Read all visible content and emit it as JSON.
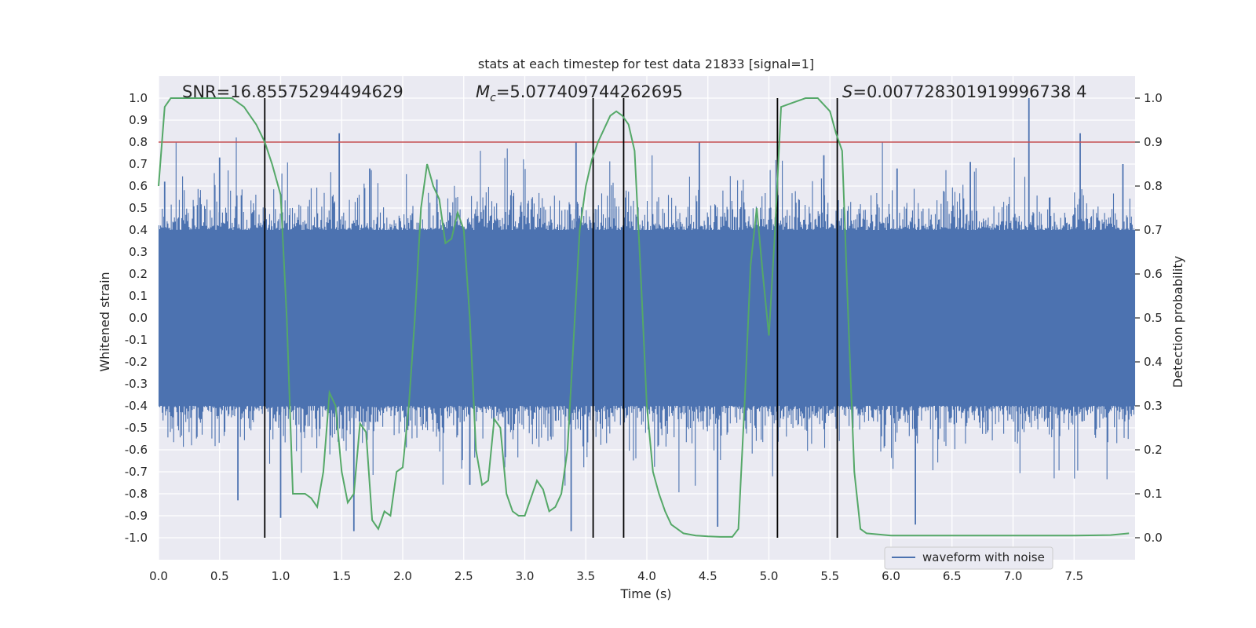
{
  "chart_data": {
    "type": "line",
    "title": "stats at each timestep for test data 21833 [signal=1]",
    "xlabel": "Time (s)",
    "ylabel": "Whitened strain",
    "ylabel_right": "Detection probability",
    "xlim": [
      0.0,
      8.0
    ],
    "ylim": [
      -1.1,
      1.1
    ],
    "ylim_right": [
      -0.05,
      1.05
    ],
    "x_ticks": [
      "0.0",
      "0.5",
      "1.0",
      "1.5",
      "2.0",
      "2.5",
      "3.0",
      "3.5",
      "4.0",
      "4.5",
      "5.0",
      "5.5",
      "6.0",
      "6.5",
      "7.0",
      "7.5"
    ],
    "y_ticks": [
      "1.0",
      "0.9",
      "0.8",
      "0.7",
      "0.6",
      "0.5",
      "0.4",
      "0.3",
      "0.2",
      "0.1",
      "0.0",
      "-0.1",
      "-0.2",
      "-0.3",
      "-0.4",
      "-0.5",
      "-0.6",
      "-0.7",
      "-0.8",
      "-0.9",
      "-1.0"
    ],
    "y_ticks_right": [
      "1.0",
      "0.9",
      "0.8",
      "0.7",
      "0.6",
      "0.5",
      "0.4",
      "0.3",
      "0.2",
      "0.1",
      "0.0"
    ],
    "annotations": {
      "snr": "SNR=16.85575294494629",
      "mc_prefix": "M",
      "mc_sub": "c",
      "mc_value": "=5.077409744262695",
      "s_prefix": "S",
      "s_value": "=0.007728301919996738 4"
    },
    "threshold": {
      "y": 0.8,
      "color": "#c44e52"
    },
    "vertical_markers_x": [
      0.87,
      3.56,
      3.81,
      5.07,
      5.56
    ],
    "series": [
      {
        "name": "waveform with noise",
        "color": "#4c72b0",
        "kind": "noise-envelope",
        "dense_band": [
          -0.4,
          0.4
        ],
        "peak_extremes_x": [
          0.05,
          0.5,
          0.65,
          1.0,
          1.48,
          1.6,
          1.73,
          2.28,
          2.55,
          3.38,
          3.42,
          4.43,
          4.58,
          5.45,
          6.05,
          6.2,
          6.65,
          7.13,
          7.55,
          7.9
        ],
        "peak_extremes_y": [
          0.62,
          0.73,
          -0.83,
          -0.91,
          0.84,
          -0.97,
          0.68,
          0.63,
          -0.76,
          -0.97,
          0.8,
          0.8,
          -0.95,
          0.74,
          0.68,
          -0.94,
          0.71,
          1.0,
          0.84,
          0.7
        ]
      },
      {
        "name": "detection probability",
        "color": "#55a868",
        "axis": "right",
        "x": [
          0.0,
          0.05,
          0.1,
          0.2,
          0.3,
          0.4,
          0.5,
          0.6,
          0.65,
          0.7,
          0.75,
          0.8,
          0.87,
          0.93,
          1.0,
          1.05,
          1.1,
          1.2,
          1.25,
          1.3,
          1.35,
          1.4,
          1.45,
          1.5,
          1.55,
          1.6,
          1.65,
          1.7,
          1.75,
          1.8,
          1.85,
          1.9,
          1.95,
          2.0,
          2.05,
          2.1,
          2.15,
          2.2,
          2.25,
          2.3,
          2.35,
          2.4,
          2.45,
          2.5,
          2.55,
          2.6,
          2.65,
          2.7,
          2.75,
          2.8,
          2.85,
          2.9,
          2.95,
          3.0,
          3.05,
          3.1,
          3.15,
          3.2,
          3.25,
          3.3,
          3.35,
          3.4,
          3.45,
          3.5,
          3.55,
          3.6,
          3.65,
          3.7,
          3.75,
          3.8,
          3.85,
          3.9,
          3.95,
          4.0,
          4.05,
          4.1,
          4.15,
          4.2,
          4.25,
          4.3,
          4.4,
          4.5,
          4.6,
          4.7,
          4.75,
          4.8,
          4.85,
          4.9,
          4.95,
          5.0,
          5.05,
          5.1,
          5.2,
          5.3,
          5.4,
          5.5,
          5.55,
          5.6,
          5.65,
          5.7,
          5.75,
          5.8,
          6.0,
          6.5,
          7.0,
          7.5,
          7.8,
          7.95
        ],
        "values": [
          0.8,
          0.98,
          1.0,
          1.0,
          1.0,
          1.0,
          1.0,
          1.0,
          0.99,
          0.98,
          0.96,
          0.94,
          0.9,
          0.85,
          0.78,
          0.5,
          0.1,
          0.1,
          0.09,
          0.07,
          0.15,
          0.33,
          0.3,
          0.15,
          0.08,
          0.1,
          0.26,
          0.24,
          0.04,
          0.02,
          0.06,
          0.05,
          0.15,
          0.16,
          0.3,
          0.5,
          0.75,
          0.85,
          0.8,
          0.77,
          0.67,
          0.68,
          0.74,
          0.7,
          0.5,
          0.2,
          0.12,
          0.13,
          0.27,
          0.25,
          0.1,
          0.06,
          0.05,
          0.05,
          0.09,
          0.13,
          0.11,
          0.06,
          0.07,
          0.1,
          0.2,
          0.45,
          0.7,
          0.8,
          0.86,
          0.9,
          0.93,
          0.96,
          0.97,
          0.96,
          0.94,
          0.88,
          0.6,
          0.3,
          0.15,
          0.1,
          0.06,
          0.03,
          0.02,
          0.01,
          0.005,
          0.003,
          0.002,
          0.002,
          0.02,
          0.3,
          0.62,
          0.75,
          0.6,
          0.46,
          0.7,
          0.98,
          0.99,
          1.0,
          1.0,
          0.97,
          0.92,
          0.88,
          0.5,
          0.15,
          0.02,
          0.01,
          0.005,
          0.005,
          0.005,
          0.005,
          0.006,
          0.01
        ]
      }
    ],
    "legend": {
      "placement": "bottom-right",
      "entries": [
        "waveform with noise"
      ]
    }
  }
}
